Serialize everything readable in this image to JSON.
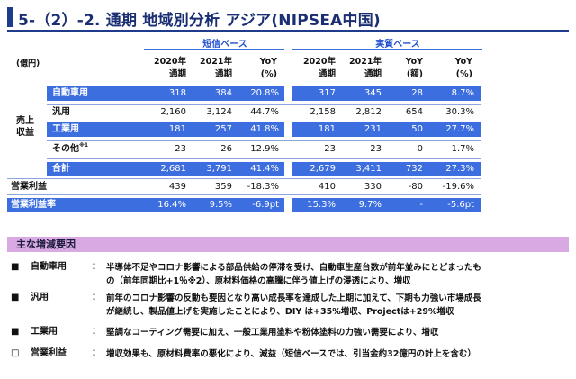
{
  "title": "5-（2）-2. 通期 地域別分析 アジア(NIPSEA中国)",
  "table": {
    "unit": "(億円)",
    "section_short": "短信ベース",
    "section_real": "実質ベース",
    "cols_short": [
      {
        "l1": "2020年",
        "l2": "通期"
      },
      {
        "l1": "2021年",
        "l2": "通期"
      },
      {
        "l1": "YoY",
        "l2": "(%)"
      }
    ],
    "cols_real": [
      {
        "l1": "2020年",
        "l2": "通期"
      },
      {
        "l1": "2021年",
        "l2": "通期"
      },
      {
        "l1": "YoY",
        "l2": "(額)"
      },
      {
        "l1": "YoY",
        "l2": "(%)"
      }
    ],
    "side_label": "売上\n収益",
    "rows": [
      {
        "label": "自動車用",
        "short": [
          "318",
          "384",
          "20.8%"
        ],
        "real": [
          "317",
          "345",
          "28",
          "8.7%"
        ]
      },
      {
        "label": "汎用",
        "short": [
          "2,160",
          "3,124",
          "44.7%"
        ],
        "real": [
          "2,158",
          "2,812",
          "654",
          "30.3%"
        ]
      },
      {
        "label": "工業用",
        "short": [
          "181",
          "257",
          "41.8%"
        ],
        "real": [
          "181",
          "231",
          "50",
          "27.7%"
        ]
      },
      {
        "label": "その他",
        "sup": "※1",
        "short": [
          "23",
          "26",
          "12.9%"
        ],
        "real": [
          "23",
          "23",
          "0",
          "1.7%"
        ]
      },
      {
        "label": "合計",
        "short": [
          "2,681",
          "3,791",
          "41.4%"
        ],
        "real": [
          "2,679",
          "3,411",
          "732",
          "27.3%"
        ]
      },
      {
        "label": "営業利益",
        "short": [
          "439",
          "359",
          "-18.3%"
        ],
        "real": [
          "410",
          "330",
          "-80",
          "-19.6%"
        ]
      },
      {
        "label": "営業利益率",
        "short": [
          "16.4%",
          "9.5%",
          "-6.9pt"
        ],
        "real": [
          "15.3%",
          "9.7%",
          "-",
          "-5.6pt"
        ]
      }
    ]
  },
  "factors": {
    "heading": "主な増減要因",
    "items": [
      {
        "mark": "■",
        "label": "自動車用",
        "lines": [
          "半導体不足やコロナ影響による部品供給の停滞を受け、自動車生産台数が前年並みにとどまったも",
          "の（前年同期比+1％※2）、原材料価格の高騰に伴う値上げの浸透により、増収"
        ]
      },
      {
        "mark": "■",
        "label": "汎用",
        "lines": [
          "前年のコロナ影響の反動も要因となり高い成長率を達成した上期に加えて、下期も力強い市場成長",
          "が継続し、製品値上げを実施したことにより、DIY は+35%増収、Projectは+29%増収"
        ]
      },
      {
        "mark": "■",
        "label": "工業用",
        "lines": [
          "堅調なコーティング需要に加え、一般工業用塗料や粉体塗料の力強い需要により、増収"
        ]
      },
      {
        "mark": "□",
        "label": "営業利益",
        "lines": [
          "増収効果も、原材料費率の悪化により、減益（短信ベースでは、引当金約32億円の計上を含む）"
        ]
      }
    ]
  }
}
